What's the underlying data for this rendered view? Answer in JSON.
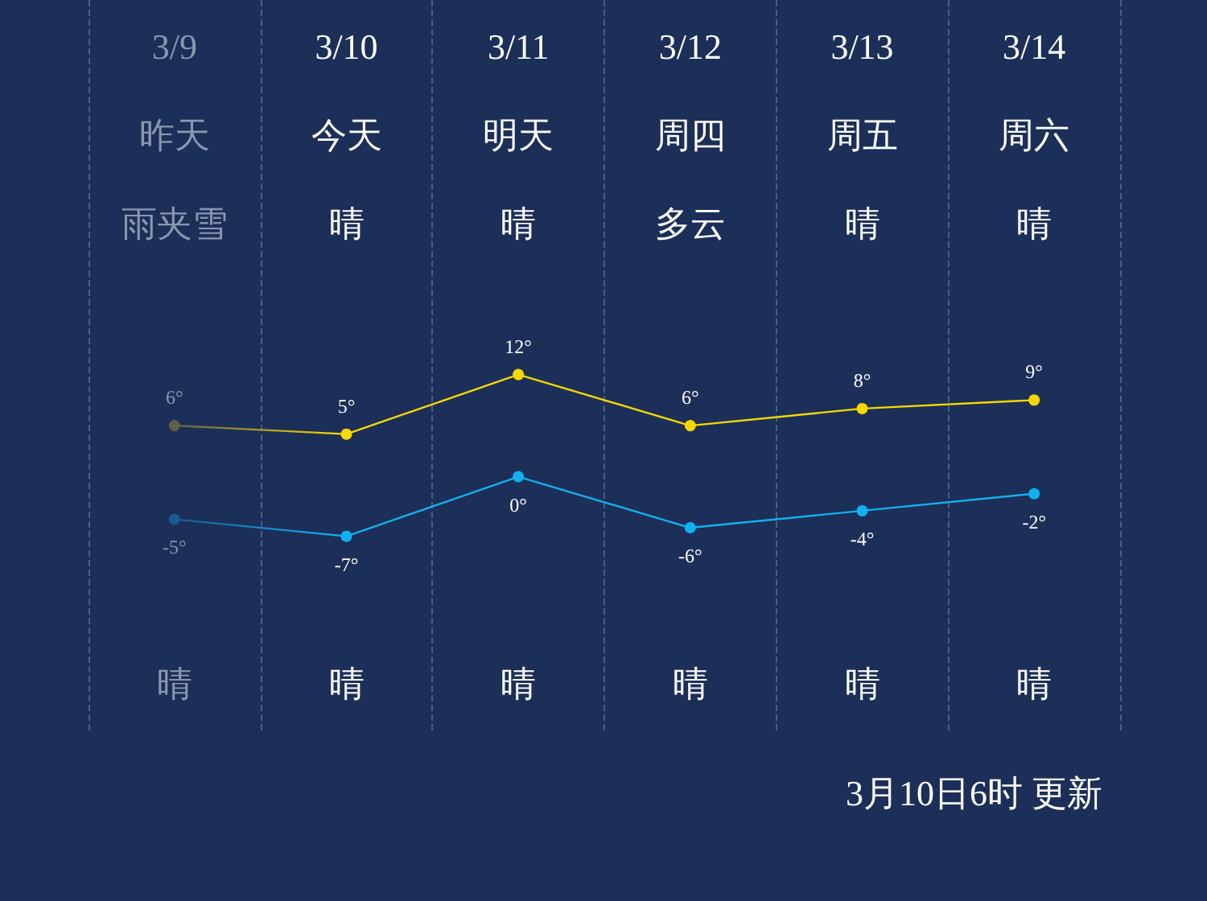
{
  "chart_data": {
    "type": "line",
    "categories": [
      "3/9",
      "3/10",
      "3/11",
      "3/12",
      "3/13",
      "3/14"
    ],
    "series": [
      {
        "color": "#f5d800",
        "colors": [
          "#5e6048",
          "#f5d800",
          "#f5d800",
          "#f5d800",
          "#f5d800",
          "#f5d800"
        ],
        "values": [
          6,
          5,
          12,
          6,
          8,
          9
        ],
        "value_labels": [
          "6°",
          "5°",
          "12°",
          "6°",
          "8°",
          "9°"
        ]
      },
      {
        "color": "#12b0f0",
        "colors": [
          "#1a5a90",
          "#12b0f0",
          "#12b0f0",
          "#12b0f0",
          "#12b0f0",
          "#12b0f0"
        ],
        "values": [
          -5,
          -7,
          0,
          -6,
          -4,
          -2
        ],
        "value_labels": [
          "-5°",
          "-7°",
          "0°",
          "-6°",
          "-4°",
          "-2°"
        ]
      }
    ],
    "marker": "circle",
    "line_style": "solid",
    "grid": "x",
    "annotations": [
      "昨天",
      "今天",
      "明天",
      "周四",
      "周五",
      "周六",
      "雨夹雪",
      "晴",
      "晴",
      "多云",
      "晴",
      "晴",
      "晴",
      "晴",
      "晴",
      "晴",
      "晴",
      "晴",
      "3月10日6时 更新"
    ]
  }
}
